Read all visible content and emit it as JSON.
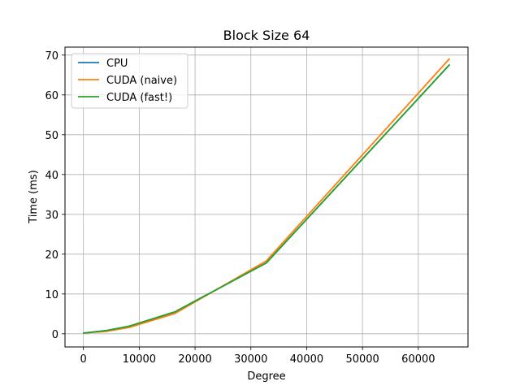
{
  "chart_data": {
    "type": "line",
    "title": "Block Size 64",
    "xlabel": "Degree",
    "ylabel": "Time (ms)",
    "xlim": [
      -3300,
      68900
    ],
    "ylim": [
      -3.3,
      72.0
    ],
    "xticks": [
      0,
      10000,
      20000,
      30000,
      40000,
      50000,
      60000
    ],
    "yticks": [
      0,
      10,
      20,
      30,
      40,
      50,
      60,
      70
    ],
    "grid": true,
    "legend_position": "top-left",
    "x": [
      64,
      4096,
      8192,
      16384,
      32768,
      65536
    ],
    "series": [
      {
        "name": "CPU",
        "color": "#1f77b4",
        "values": [
          0.2,
          0.8,
          1.9,
          5.5,
          17.8,
          67.5
        ]
      },
      {
        "name": "CUDA (naive)",
        "color": "#ff7f0e",
        "values": [
          0.2,
          0.6,
          1.6,
          5.1,
          18.3,
          69.0
        ]
      },
      {
        "name": "CUDA (fast!)",
        "color": "#2ca02c",
        "values": [
          0.2,
          0.8,
          1.9,
          5.5,
          17.8,
          67.5
        ]
      }
    ]
  }
}
